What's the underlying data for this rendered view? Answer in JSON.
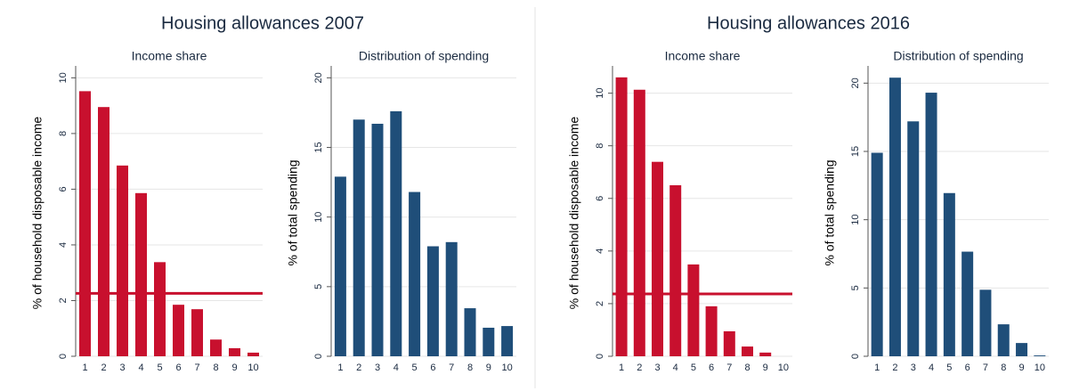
{
  "headings": [
    "Housing allowances 2007",
    "Housing allowances 2016"
  ],
  "chart_data": [
    {
      "type": "bar",
      "title": "Income share",
      "ylabel": "% of household disposable income",
      "color": "#c8102e",
      "categories": [
        "1",
        "2",
        "3",
        "4",
        "5",
        "6",
        "7",
        "8",
        "9",
        "10"
      ],
      "values": [
        9.52,
        8.95,
        6.85,
        5.86,
        3.38,
        1.85,
        1.69,
        0.6,
        0.29,
        0.13
      ],
      "ylim": [
        0,
        10.3
      ],
      "yticks": [
        0,
        2,
        4,
        6,
        8,
        10
      ],
      "grid": true,
      "reference_line": 2.26
    },
    {
      "type": "bar",
      "title": "Distribution of spending",
      "ylabel": "% of total spending",
      "color": "#1f4e79",
      "categories": [
        "1",
        "2",
        "3",
        "4",
        "5",
        "6",
        "7",
        "8",
        "9",
        "10"
      ],
      "values": [
        12.9,
        17.0,
        16.7,
        17.6,
        11.8,
        7.9,
        8.2,
        3.45,
        2.05,
        2.17
      ],
      "ylim": [
        0,
        20.6
      ],
      "yticks": [
        0,
        5,
        10,
        15,
        20
      ],
      "grid": true
    },
    {
      "type": "bar",
      "title": "Income share",
      "ylabel": "% of household disposable income",
      "color": "#c8102e",
      "categories": [
        "1",
        "2",
        "3",
        "4",
        "5",
        "6",
        "7",
        "8",
        "9",
        "10"
      ],
      "values": [
        10.6,
        10.13,
        7.39,
        6.5,
        3.49,
        1.9,
        0.95,
        0.37,
        0.14,
        0
      ],
      "ylim": [
        0,
        10.9
      ],
      "yticks": [
        0,
        2,
        4,
        6,
        8,
        10
      ],
      "grid": true,
      "reference_line": 2.37
    },
    {
      "type": "bar",
      "title": "Distribution of spending",
      "ylabel": "% of total spending",
      "color": "#1f4e79",
      "categories": [
        "1",
        "2",
        "3",
        "4",
        "5",
        "6",
        "7",
        "8",
        "9",
        "10"
      ],
      "values": [
        14.9,
        20.4,
        17.2,
        19.3,
        11.95,
        7.66,
        4.87,
        2.34,
        0.97,
        0.06
      ],
      "ylim": [
        0,
        21
      ],
      "yticks": [
        0,
        5,
        10,
        15,
        20
      ],
      "grid": true
    }
  ]
}
